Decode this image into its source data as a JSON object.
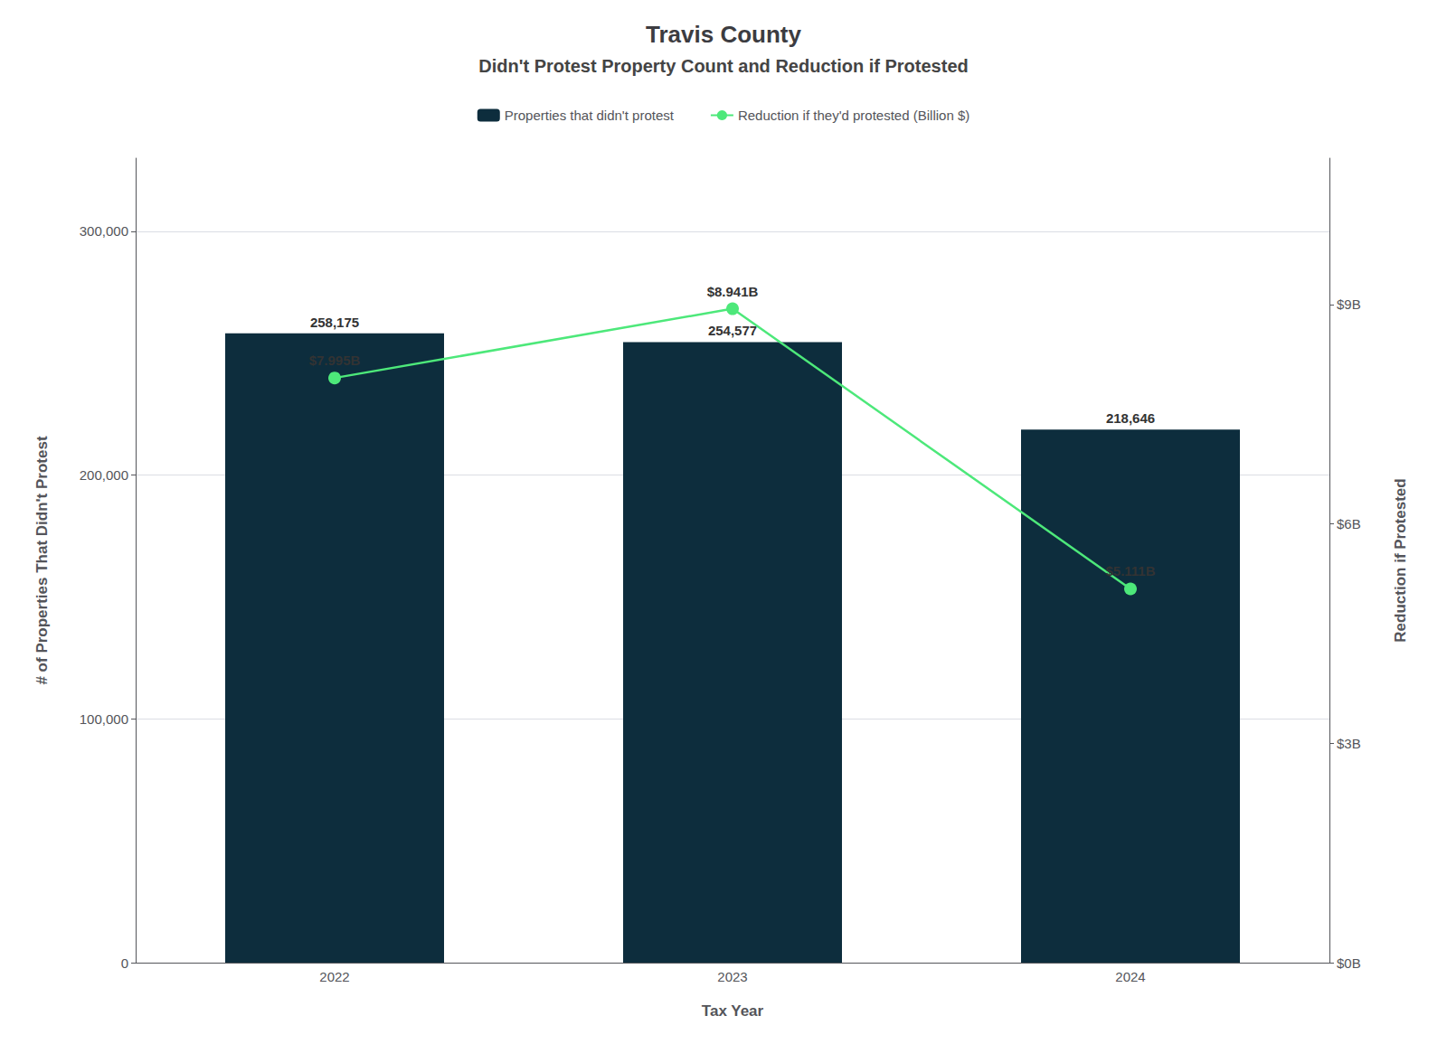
{
  "chart_data": {
    "type": "bar",
    "title": "Travis County",
    "subtitle": "Didn't Protest Property Count and Reduction if Protested",
    "xlabel": "Tax Year",
    "ylabel": "# of Properties That Didn't Protest",
    "y2label": "Reduction if Protested",
    "categories": [
      "2022",
      "2023",
      "2024"
    ],
    "series": [
      {
        "name": "Properties that didn't protest",
        "type": "bar",
        "color": "#0d2d3d",
        "values": [
          258175,
          254577,
          218646
        ],
        "value_labels": [
          "258,175",
          "254,577",
          "218,646"
        ]
      },
      {
        "name": "Reduction if they'd protested (Billion $)",
        "type": "line",
        "axis": "y2",
        "color": "#4de87a",
        "marker": "circle",
        "values": [
          7.995,
          8.941,
          5.111
        ],
        "value_labels": [
          "$7.995B",
          "$8.941B",
          "$5.111B"
        ]
      }
    ],
    "ylim": [
      0,
      330000
    ],
    "yticks": [
      0,
      {
        "value": 100000,
        "label": "100,000"
      },
      {
        "value": 200000,
        "label": "200,000"
      },
      {
        "value": 300000,
        "label": "300,000"
      }
    ],
    "y2lim": [
      0,
      11
    ],
    "y2ticks": [
      {
        "value": 0,
        "label": "$0B"
      },
      {
        "value": 3,
        "label": "$3B"
      },
      {
        "value": 6,
        "label": "$6B"
      },
      {
        "value": 9,
        "label": "$9B"
      }
    ],
    "grid": true,
    "legend": "top",
    "data_labels": true
  }
}
